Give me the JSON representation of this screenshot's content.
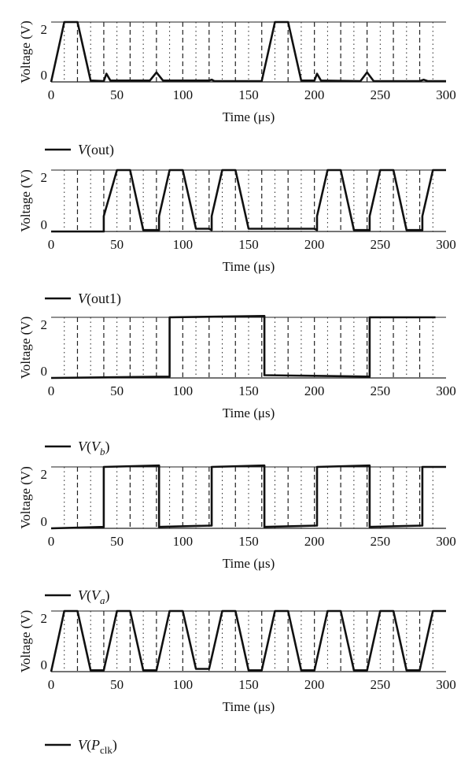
{
  "chart_data": [
    {
      "type": "line",
      "xlabel": "Time (μs)",
      "ylabel": "Voltage (V)",
      "x_ticks": [
        "0",
        "50",
        "100",
        "150",
        "200",
        "250",
        "300"
      ],
      "y_ticks": [
        "0",
        "2"
      ],
      "xlim": [
        0,
        300
      ],
      "ylim": [
        0,
        2.2
      ],
      "series": [
        {
          "name": "V(out)",
          "x": [
            0,
            10,
            20,
            30,
            40,
            42,
            45,
            75,
            80,
            85,
            120,
            122,
            124,
            160,
            170,
            180,
            190,
            200,
            202,
            205,
            235,
            240,
            245,
            280,
            283,
            286,
            300
          ],
          "y": [
            0,
            2.2,
            2.2,
            0.05,
            0.03,
            0.3,
            0.05,
            0.05,
            0.35,
            0.05,
            0.05,
            0.08,
            0.03,
            0.03,
            2.2,
            2.2,
            0.05,
            0.05,
            0.3,
            0.05,
            0.03,
            0.35,
            0.03,
            0.03,
            0.08,
            0.03,
            0.03
          ]
        }
      ]
    },
    {
      "type": "line",
      "xlabel": "Time (μs)",
      "ylabel": "Voltage (V)",
      "x_ticks": [
        "0",
        "50",
        "100",
        "150",
        "200",
        "250",
        "300"
      ],
      "y_ticks": [
        "0",
        "2"
      ],
      "xlim": [
        0,
        300
      ],
      "ylim": [
        0,
        2.2
      ],
      "series": [
        {
          "name": "V(out1)",
          "x": [
            0,
            40,
            40,
            50,
            60,
            70,
            80,
            82,
            82,
            90,
            100,
            110,
            120,
            122,
            122,
            130,
            140,
            150,
            200,
            202,
            202,
            210,
            220,
            230,
            240,
            242,
            242,
            250,
            260,
            270,
            280,
            282,
            282,
            290,
            300
          ],
          "y": [
            0,
            0,
            0.55,
            2.2,
            2.2,
            0.05,
            0.05,
            0.05,
            0.55,
            2.2,
            2.2,
            0.1,
            0.1,
            0.05,
            0.55,
            2.2,
            2.2,
            0.1,
            0.1,
            0.05,
            0.55,
            2.2,
            2.2,
            0.05,
            0.05,
            0.05,
            0.55,
            2.2,
            2.2,
            0.05,
            0.05,
            0.05,
            0.55,
            2.2,
            2.2
          ]
        }
      ]
    },
    {
      "type": "line",
      "xlabel": "Time (μs)",
      "ylabel": "Voltage (V)",
      "x_ticks": [
        "0",
        "50",
        "100",
        "150",
        "200",
        "250",
        "300"
      ],
      "y_ticks": [
        "0",
        "2"
      ],
      "xlim": [
        0,
        300
      ],
      "ylim": [
        0,
        2.2
      ],
      "series": [
        {
          "name": "V(V_b)",
          "x": [
            0,
            90,
            90,
            162,
            162,
            242,
            242,
            292
          ],
          "y": [
            0,
            0.05,
            2.2,
            2.25,
            0.1,
            0.05,
            2.2,
            2.2
          ]
        }
      ]
    },
    {
      "type": "line",
      "xlabel": "Time (μs)",
      "ylabel": "Voltage (V)",
      "x_ticks": [
        "0",
        "50",
        "100",
        "150",
        "200",
        "250",
        "300"
      ],
      "y_ticks": [
        "0",
        "2"
      ],
      "xlim": [
        0,
        300
      ],
      "ylim": [
        0,
        2.2
      ],
      "series": [
        {
          "name": "V(V_a)",
          "x": [
            0,
            40,
            40,
            82,
            82,
            122,
            122,
            162,
            162,
            202,
            202,
            242,
            242,
            282,
            282,
            300
          ],
          "y": [
            0,
            0.05,
            2.2,
            2.25,
            0.05,
            0.1,
            2.2,
            2.25,
            0.05,
            0.1,
            2.2,
            2.25,
            0.05,
            0.1,
            2.2,
            2.2
          ]
        }
      ]
    },
    {
      "type": "line",
      "xlabel": "Time (μs)",
      "ylabel": "Voltage (V)",
      "x_ticks": [
        "0",
        "50",
        "100",
        "150",
        "200",
        "250",
        "300"
      ],
      "y_ticks": [
        "0",
        "2"
      ],
      "xlim": [
        0,
        300
      ],
      "ylim": [
        0,
        2.2
      ],
      "series": [
        {
          "name": "V(P_clk)",
          "x": [
            0,
            10,
            20,
            30,
            40,
            50,
            60,
            70,
            80,
            90,
            100,
            110,
            120,
            130,
            140,
            150,
            160,
            170,
            180,
            190,
            200,
            210,
            220,
            230,
            240,
            250,
            260,
            270,
            280,
            290,
            300
          ],
          "y": [
            0,
            2.2,
            2.2,
            0.05,
            0.05,
            2.2,
            2.2,
            0.05,
            0.05,
            2.2,
            2.2,
            0.1,
            0.1,
            2.2,
            2.2,
            0.05,
            0.05,
            2.2,
            2.2,
            0.05,
            0.05,
            2.2,
            2.2,
            0.05,
            0.05,
            2.2,
            2.2,
            0.05,
            0.05,
            2.2,
            2.2
          ]
        }
      ]
    }
  ],
  "legends": [
    {
      "text": "V(out)"
    },
    {
      "text": "V(out1)"
    },
    {
      "pre": "V(V",
      "sub": "b",
      "post": ")"
    },
    {
      "pre": "V(V",
      "sub": "a",
      "post": ")"
    },
    {
      "pre": "V(P",
      "sub": "clk",
      "post": ")"
    }
  ]
}
